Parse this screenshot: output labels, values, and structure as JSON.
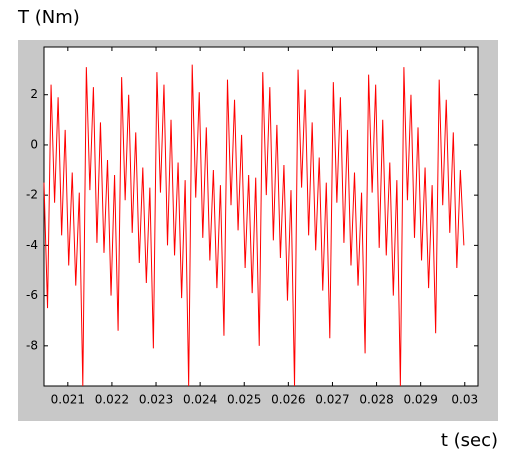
{
  "chart_data": {
    "type": "line",
    "ylabel": "T (Nm)",
    "xlabel": "t (sec)",
    "color": "#ff0000",
    "xlim": [
      0.02046,
      0.0303
    ],
    "ylim": [
      -9.6,
      3.9
    ],
    "xticks": [
      0.021,
      0.022,
      0.023,
      0.024,
      0.025,
      0.026,
      0.027,
      0.028,
      0.029,
      0.03
    ],
    "yticks": [
      2,
      0,
      -2,
      -4,
      -6,
      -8
    ],
    "x": [
      0.02046,
      0.02054,
      0.02062,
      0.0207,
      0.02078,
      0.02086,
      0.02094,
      0.02102,
      0.0211,
      0.02118,
      0.02126,
      0.02134,
      0.02142,
      0.0215,
      0.02158,
      0.02166,
      0.02174,
      0.02182,
      0.0219,
      0.02198,
      0.02206,
      0.02214,
      0.02222,
      0.0223,
      0.02238,
      0.02246,
      0.02254,
      0.02262,
      0.0227,
      0.02278,
      0.02286,
      0.02294,
      0.02302,
      0.0231,
      0.02318,
      0.02326,
      0.02334,
      0.02342,
      0.0235,
      0.02358,
      0.02366,
      0.02374,
      0.02382,
      0.0239,
      0.02398,
      0.02406,
      0.02414,
      0.02422,
      0.0243,
      0.02438,
      0.02446,
      0.02454,
      0.02462,
      0.0247,
      0.02478,
      0.02486,
      0.02494,
      0.02502,
      0.0251,
      0.02518,
      0.02526,
      0.02534,
      0.02542,
      0.0255,
      0.02558,
      0.02566,
      0.02574,
      0.02582,
      0.0259,
      0.02598,
      0.02606,
      0.02614,
      0.02622,
      0.0263,
      0.02638,
      0.02646,
      0.02654,
      0.02662,
      0.0267,
      0.02678,
      0.02686,
      0.02694,
      0.02702,
      0.0271,
      0.02718,
      0.02726,
      0.02734,
      0.02742,
      0.0275,
      0.02758,
      0.02766,
      0.02774,
      0.02782,
      0.0279,
      0.02798,
      0.02806,
      0.02814,
      0.02822,
      0.0283,
      0.02838,
      0.02846,
      0.02854,
      0.02862,
      0.0287,
      0.02878,
      0.02886,
      0.02894,
      0.02902,
      0.0291,
      0.02918,
      0.02926,
      0.02934,
      0.02942,
      0.0295,
      0.02958,
      0.02966,
      0.02974,
      0.02982,
      0.0299,
      0.02998
    ],
    "values": [
      -1.5,
      -6.5,
      2.4,
      -2.3,
      1.9,
      -3.6,
      0.6,
      -4.8,
      -1.1,
      -5.6,
      -1.9,
      -9.6,
      3.1,
      -1.8,
      2.3,
      -3.9,
      0.9,
      -4.3,
      -0.6,
      -6.0,
      -1.2,
      -7.4,
      2.7,
      -2.2,
      2.0,
      -3.5,
      0.5,
      -4.7,
      -0.9,
      -5.5,
      -1.7,
      -8.1,
      2.9,
      -1.9,
      2.4,
      -4.0,
      1.0,
      -4.4,
      -0.7,
      -6.1,
      -1.4,
      -9.6,
      3.2,
      -2.1,
      2.1,
      -3.7,
      0.7,
      -4.6,
      -1.0,
      -5.7,
      -1.6,
      -7.6,
      2.6,
      -2.4,
      1.8,
      -3.4,
      0.4,
      -4.9,
      -1.2,
      -5.9,
      -1.3,
      -8.0,
      2.9,
      -2.0,
      2.3,
      -3.8,
      0.8,
      -4.5,
      -0.8,
      -6.2,
      -1.8,
      -9.6,
      3.0,
      -1.7,
      2.2,
      -3.6,
      0.9,
      -4.2,
      -0.5,
      -5.8,
      -1.5,
      -7.7,
      2.5,
      -2.3,
      1.9,
      -3.9,
      0.6,
      -4.8,
      -1.1,
      -5.6,
      -1.9,
      -8.3,
      2.8,
      -1.9,
      2.4,
      -4.1,
      1.0,
      -4.4,
      -0.7,
      -6.0,
      -1.4,
      -9.6,
      3.1,
      -2.2,
      2.0,
      -3.7,
      0.7,
      -4.6,
      -0.9,
      -5.7,
      -1.6,
      -7.5,
      2.6,
      -2.4,
      1.8,
      -3.5,
      0.5,
      -4.9,
      -1.0,
      -4.0
    ]
  }
}
